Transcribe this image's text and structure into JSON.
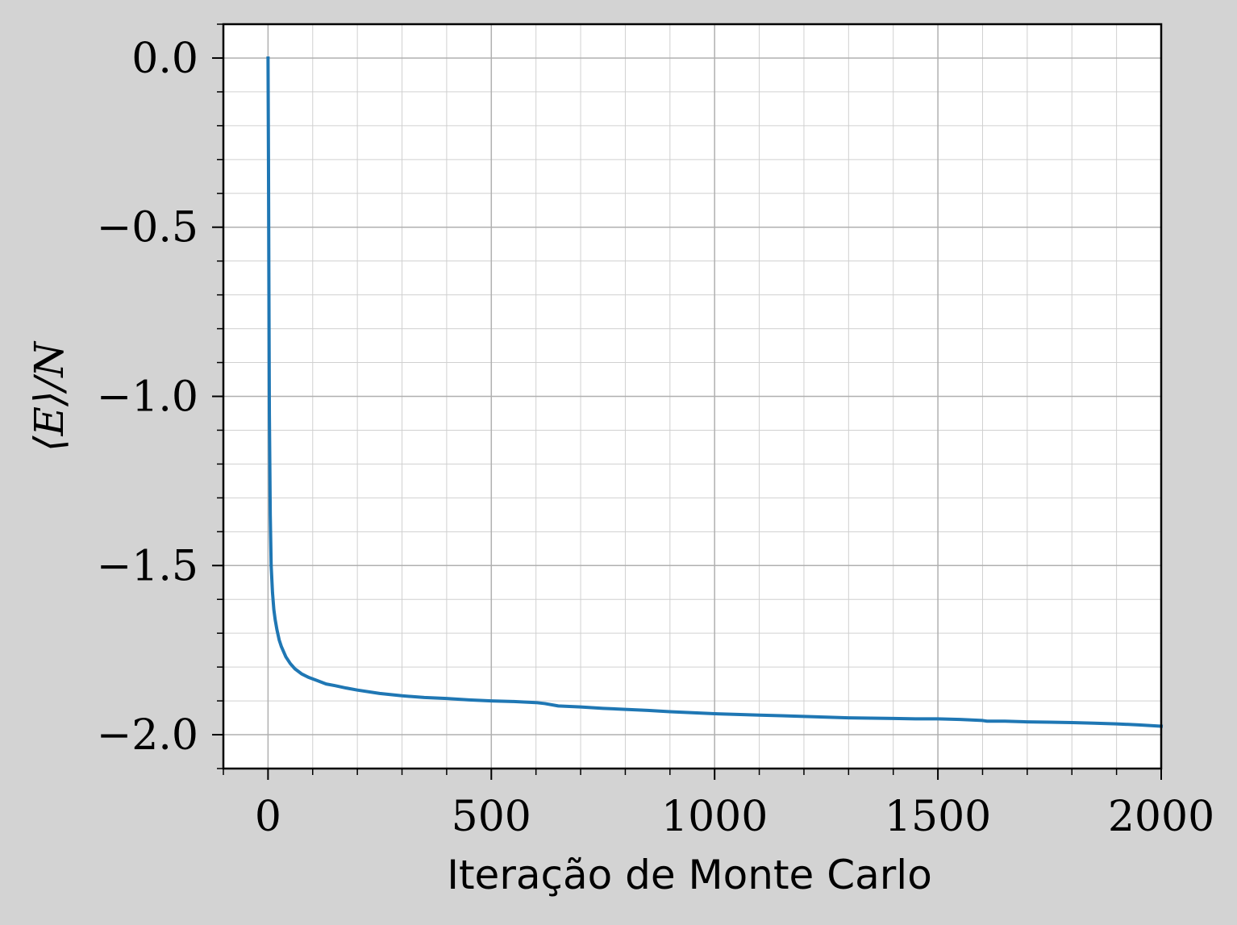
{
  "chart_data": {
    "type": "line",
    "title": "",
    "xlabel": "Iteração de Monte Carlo",
    "ylabel": "⟨E⟩/N",
    "xlim": [
      -100,
      2000
    ],
    "ylim": [
      -2.1,
      0.1
    ],
    "xticks": [
      0,
      500,
      1000,
      1500,
      2000
    ],
    "xtick_labels": [
      "0",
      "500",
      "1000",
      "1500",
      "2000"
    ],
    "yticks": [
      0.0,
      -0.5,
      -1.0,
      -1.5,
      -2.0
    ],
    "ytick_labels": [
      "0.0",
      "−0.5",
      "−1.0",
      "−1.5",
      "−2.0"
    ],
    "x_minor_step": 100,
    "y_minor_step": 0.1,
    "grid": true,
    "legend": "none",
    "colors": {
      "line": "#1f77b4",
      "background": "#d3d3d3",
      "plot_area": "#ffffff",
      "major_grid": "#b0b0b0",
      "minor_grid": "#d0d0d0"
    },
    "series": [
      {
        "x": [
          0,
          1,
          2,
          3,
          5,
          7,
          10,
          13,
          16,
          20,
          25,
          30,
          40,
          50,
          60,
          75,
          90,
          110,
          130,
          150,
          175,
          200,
          250,
          300,
          350,
          400,
          450,
          500,
          550,
          600,
          620,
          650,
          700,
          750,
          800,
          850,
          900,
          950,
          1000,
          1050,
          1100,
          1150,
          1200,
          1250,
          1300,
          1350,
          1400,
          1450,
          1500,
          1550,
          1600,
          1610,
          1650,
          1700,
          1750,
          1800,
          1850,
          1900,
          1950,
          2000
        ],
        "y": [
          0.0,
          -0.3,
          -0.7,
          -1.05,
          -1.35,
          -1.5,
          -1.58,
          -1.63,
          -1.66,
          -1.69,
          -1.72,
          -1.74,
          -1.77,
          -1.79,
          -1.805,
          -1.82,
          -1.83,
          -1.84,
          -1.85,
          -1.855,
          -1.862,
          -1.868,
          -1.878,
          -1.885,
          -1.89,
          -1.893,
          -1.897,
          -1.9,
          -1.902,
          -1.905,
          -1.908,
          -1.915,
          -1.918,
          -1.922,
          -1.925,
          -1.928,
          -1.932,
          -1.935,
          -1.938,
          -1.94,
          -1.942,
          -1.944,
          -1.946,
          -1.948,
          -1.95,
          -1.951,
          -1.952,
          -1.953,
          -1.953,
          -1.955,
          -1.958,
          -1.96,
          -1.96,
          -1.962,
          -1.963,
          -1.964,
          -1.966,
          -1.968,
          -1.971,
          -1.975
        ]
      }
    ]
  }
}
